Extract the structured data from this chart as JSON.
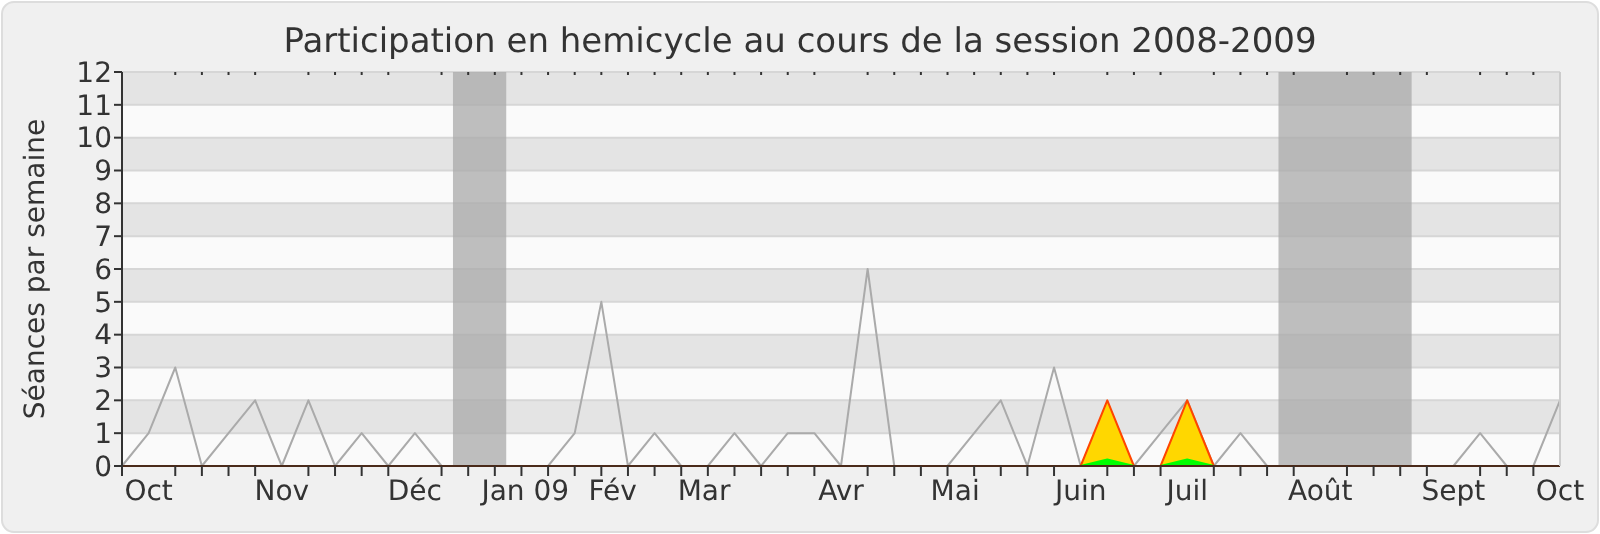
{
  "chart_data": {
    "type": "line",
    "title": "Participation en hemicycle au cours de la session 2008-2009",
    "ylabel": "Séances par semaine",
    "x": [
      "2008-09-29",
      "2008-10-06",
      "2008-10-13",
      "2008-10-20",
      "2008-10-27",
      "2008-11-03",
      "2008-11-10",
      "2008-11-17",
      "2008-11-24",
      "2008-12-01",
      "2008-12-08",
      "2008-12-15",
      "2008-12-22",
      "2008-12-29",
      "2009-01-05",
      "2009-01-12",
      "2009-01-19",
      "2009-01-26",
      "2009-02-02",
      "2009-02-09",
      "2009-02-16",
      "2009-02-23",
      "2009-03-02",
      "2009-03-09",
      "2009-03-16",
      "2009-03-23",
      "2009-03-30",
      "2009-04-06",
      "2009-04-13",
      "2009-04-20",
      "2009-04-27",
      "2009-05-04",
      "2009-05-11",
      "2009-05-18",
      "2009-05-25",
      "2009-06-01",
      "2009-06-08",
      "2009-06-15",
      "2009-06-22",
      "2009-06-29",
      "2009-07-06",
      "2009-07-13",
      "2009-07-20",
      "2009-07-27",
      "2009-08-03",
      "2009-08-10",
      "2009-08-17",
      "2009-08-24",
      "2009-08-31",
      "2009-09-07",
      "2009-09-14",
      "2009-09-21",
      "2009-09-28",
      "2009-10-05",
      "2009-10-12"
    ],
    "series": [
      {
        "type": "line",
        "color": "#aaaaaa",
        "values": [
          0,
          1,
          3,
          0,
          1,
          2,
          0,
          2,
          0,
          1,
          0,
          1,
          0,
          null,
          null,
          null,
          0,
          1,
          5,
          0,
          1,
          0,
          0,
          1,
          0,
          1,
          1,
          0,
          6,
          0,
          0,
          0,
          1,
          2,
          0,
          3,
          0,
          null,
          0,
          1,
          2,
          0,
          1,
          0,
          null,
          null,
          null,
          null,
          null,
          null,
          0,
          1,
          0,
          0,
          2
        ]
      },
      {
        "type": "area",
        "color": "#ffd700",
        "values": [
          null,
          null,
          null,
          null,
          null,
          null,
          null,
          null,
          null,
          null,
          null,
          null,
          null,
          null,
          null,
          null,
          null,
          null,
          null,
          null,
          null,
          null,
          null,
          null,
          null,
          null,
          null,
          null,
          null,
          null,
          null,
          null,
          null,
          null,
          null,
          null,
          0,
          2,
          0,
          0,
          2,
          0,
          null,
          null,
          null,
          null,
          null,
          null,
          null,
          null,
          null,
          null,
          null,
          null,
          null
        ]
      },
      {
        "type": "area",
        "color": "#00ff00",
        "values": [
          null,
          null,
          null,
          null,
          null,
          null,
          null,
          null,
          null,
          null,
          null,
          null,
          null,
          null,
          null,
          null,
          null,
          null,
          null,
          null,
          null,
          null,
          null,
          null,
          null,
          null,
          null,
          null,
          null,
          null,
          null,
          null,
          null,
          null,
          null,
          null,
          0,
          0.2,
          0,
          0,
          0.2,
          0,
          null,
          null,
          null,
          null,
          null,
          null,
          null,
          null,
          null,
          null,
          null,
          null,
          null
        ]
      }
    ],
    "xlim": [
      "2008-09-29",
      "2009-10-12"
    ],
    "xticks": [
      {
        "value": "2008-09-29",
        "label": null
      },
      {
        "value": "2008-10-06",
        "label": "Oct"
      },
      {
        "value": "2008-10-13",
        "label": null
      },
      {
        "value": "2008-10-20",
        "label": null
      },
      {
        "value": "2008-10-27",
        "label": null
      },
      {
        "value": "2008-11-03",
        "label": null
      },
      {
        "value": "2008-11-10",
        "label": "Nov"
      },
      {
        "value": "2008-11-17",
        "label": null
      },
      {
        "value": "2008-11-24",
        "label": null
      },
      {
        "value": "2008-12-01",
        "label": null
      },
      {
        "value": "2008-12-08",
        "label": null
      },
      {
        "value": "2008-12-15",
        "label": "Déc"
      },
      {
        "value": "2008-12-22",
        "label": null
      },
      {
        "value": "2008-12-29",
        "label": null
      },
      {
        "value": "2009-01-05",
        "label": null
      },
      {
        "value": "2009-01-12",
        "label": null
      },
      {
        "value": "2009-01-13",
        "label": "Jan 09"
      },
      {
        "value": "2009-01-19",
        "label": null
      },
      {
        "value": "2009-01-26",
        "label": null
      },
      {
        "value": "2009-02-02",
        "label": null
      },
      {
        "value": "2009-02-05",
        "label": "Fév"
      },
      {
        "value": "2009-02-09",
        "label": null
      },
      {
        "value": "2009-02-16",
        "label": null
      },
      {
        "value": "2009-02-23",
        "label": null
      },
      {
        "value": "2009-03-01",
        "label": "Mar"
      },
      {
        "value": "2009-03-02",
        "label": null
      },
      {
        "value": "2009-03-09",
        "label": null
      },
      {
        "value": "2009-03-16",
        "label": null
      },
      {
        "value": "2009-03-23",
        "label": null
      },
      {
        "value": "2009-03-30",
        "label": null
      },
      {
        "value": "2009-04-06",
        "label": "Avr"
      },
      {
        "value": "2009-04-13",
        "label": null
      },
      {
        "value": "2009-04-20",
        "label": null
      },
      {
        "value": "2009-04-27",
        "label": null
      },
      {
        "value": "2009-05-04",
        "label": null
      },
      {
        "value": "2009-05-06",
        "label": "Mai"
      },
      {
        "value": "2009-05-11",
        "label": null
      },
      {
        "value": "2009-05-18",
        "label": null
      },
      {
        "value": "2009-05-25",
        "label": null
      },
      {
        "value": "2009-06-01",
        "label": null
      },
      {
        "value": "2009-06-08",
        "label": "Juin"
      },
      {
        "value": "2009-06-15",
        "label": null
      },
      {
        "value": "2009-06-22",
        "label": null
      },
      {
        "value": "2009-06-29",
        "label": null
      },
      {
        "value": "2009-07-06",
        "label": "Juil"
      },
      {
        "value": "2009-07-13",
        "label": null
      },
      {
        "value": "2009-07-20",
        "label": null
      },
      {
        "value": "2009-07-27",
        "label": null
      },
      {
        "value": "2009-08-03",
        "label": null
      },
      {
        "value": "2009-08-10",
        "label": "Août"
      },
      {
        "value": "2009-08-17",
        "label": null
      },
      {
        "value": "2009-08-24",
        "label": null
      },
      {
        "value": "2009-08-31",
        "label": null
      },
      {
        "value": "2009-09-07",
        "label": null
      },
      {
        "value": "2009-09-14",
        "label": "Sept"
      },
      {
        "value": "2009-09-21",
        "label": null
      },
      {
        "value": "2009-09-28",
        "label": null
      },
      {
        "value": "2009-10-05",
        "label": null
      },
      {
        "value": "2009-10-12",
        "label": "Oct"
      }
    ],
    "ylim": [
      0,
      12
    ],
    "yticks": [
      0,
      1,
      2,
      3,
      4,
      5,
      6,
      7,
      8,
      9,
      10,
      11,
      12
    ],
    "grid": "y",
    "bands": [
      {
        "axis": "x",
        "from": "2008-12-25",
        "to": "2009-01-08",
        "color": "#aaaaaa"
      },
      {
        "axis": "x",
        "from": "2009-07-30",
        "to": "2009-09-03",
        "color": "#aaaaaa"
      }
    ]
  }
}
